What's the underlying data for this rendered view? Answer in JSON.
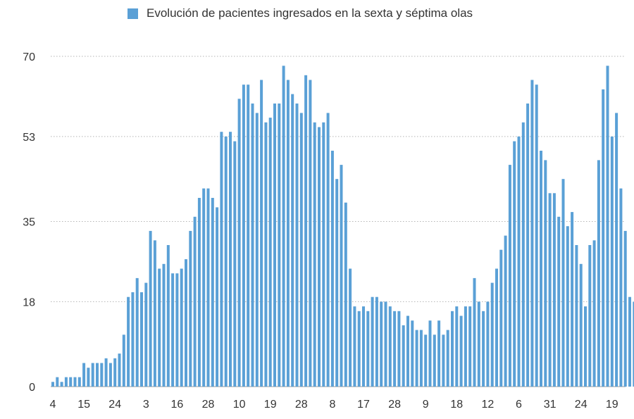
{
  "chart_data": {
    "type": "bar",
    "title": "",
    "xlabel": "",
    "ylabel": "",
    "legend": {
      "placement": "top-center",
      "label": "Evolución de pacientes ingresados en la sexta y séptima olas"
    },
    "colors": {
      "bar": "#5aa0d6",
      "grid": "#b5b5b5",
      "axis": "#999999",
      "text": "#333333"
    },
    "grid": true,
    "ylim": [
      0,
      70
    ],
    "yticks": [
      "0",
      "18",
      "35",
      "53",
      "70"
    ],
    "xticks": [
      {
        "index": 0,
        "label": "4"
      },
      {
        "index": 7,
        "label": "15"
      },
      {
        "index": 14,
        "label": "24"
      },
      {
        "index": 21,
        "label": "3"
      },
      {
        "index": 28,
        "label": "16"
      },
      {
        "index": 35,
        "label": "28"
      },
      {
        "index": 42,
        "label": "10"
      },
      {
        "index": 49,
        "label": "19"
      },
      {
        "index": 56,
        "label": "28"
      },
      {
        "index": 63,
        "label": "8"
      },
      {
        "index": 70,
        "label": "17"
      },
      {
        "index": 77,
        "label": "28"
      },
      {
        "index": 84,
        "label": "9"
      },
      {
        "index": 91,
        "label": "18"
      },
      {
        "index": 98,
        "label": "12"
      },
      {
        "index": 105,
        "label": "6"
      },
      {
        "index": 112,
        "label": "31"
      },
      {
        "index": 119,
        "label": "24"
      },
      {
        "index": 126,
        "label": "19"
      }
    ],
    "values": [
      1,
      2,
      1,
      2,
      2,
      2,
      2,
      5,
      4,
      5,
      5,
      5,
      6,
      5,
      6,
      7,
      11,
      19,
      20,
      23,
      20,
      22,
      33,
      31,
      25,
      26,
      30,
      24,
      24,
      25,
      27,
      33,
      36,
      40,
      42,
      42,
      40,
      38,
      54,
      53,
      54,
      52,
      61,
      64,
      64,
      60,
      58,
      65,
      56,
      57,
      60,
      60,
      68,
      65,
      62,
      60,
      58,
      66,
      65,
      56,
      55,
      56,
      58,
      50,
      44,
      47,
      39,
      25,
      17,
      16,
      17,
      16,
      19,
      19,
      18,
      18,
      17,
      16,
      16,
      13,
      15,
      14,
      12,
      12,
      11,
      14,
      11,
      14,
      11,
      12,
      16,
      17,
      15,
      17,
      17,
      23,
      18,
      16,
      18,
      22,
      25,
      29,
      32,
      47,
      52,
      53,
      56,
      60,
      65,
      64,
      50,
      48,
      41,
      41,
      36,
      44,
      34,
      37,
      30,
      26,
      17,
      30,
      31,
      48,
      63,
      68,
      53,
      58,
      42,
      33,
      19,
      18
    ]
  }
}
